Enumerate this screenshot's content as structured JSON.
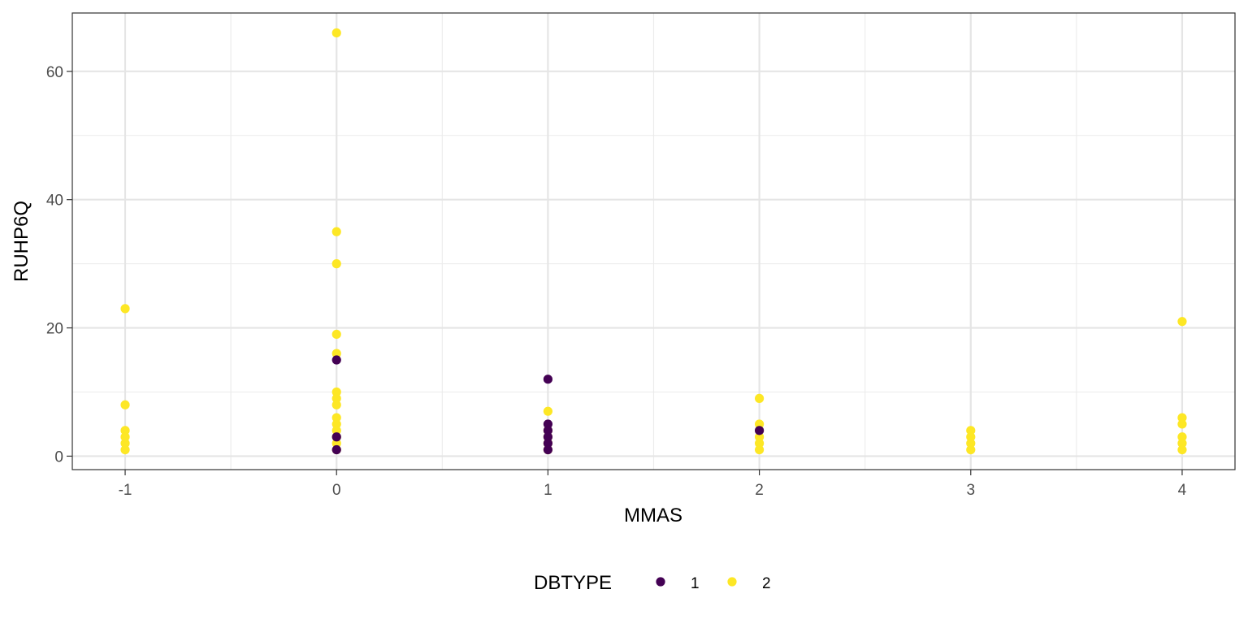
{
  "chart_data": {
    "type": "scatter",
    "title": "",
    "xlabel": "MMAS",
    "ylabel": "RUHP6Q",
    "xlim": [
      -1.25,
      4.25
    ],
    "ylim": [
      -2.1,
      69.1
    ],
    "x_ticks": [
      -1,
      0,
      1,
      2,
      3,
      4
    ],
    "x_tick_labels": [
      "-1",
      "0",
      "1",
      "2",
      "3",
      "4"
    ],
    "y_ticks": [
      0,
      20,
      40,
      60
    ],
    "y_tick_labels": [
      "0",
      "20",
      "40",
      "60"
    ],
    "grid": true,
    "legend": {
      "title": "DBTYPE",
      "position": "bottom",
      "entries": [
        {
          "label": "1",
          "color": "#440154"
        },
        {
          "label": "2",
          "color": "#FDE725"
        }
      ]
    },
    "series": [
      {
        "name": "2",
        "color": "#FDE725",
        "points": [
          [
            -1,
            23
          ],
          [
            -1,
            8
          ],
          [
            -1,
            4
          ],
          [
            -1,
            3
          ],
          [
            -1,
            2
          ],
          [
            -1,
            1
          ],
          [
            0,
            66
          ],
          [
            0,
            35
          ],
          [
            0,
            30
          ],
          [
            0,
            19
          ],
          [
            0,
            16
          ],
          [
            0,
            10
          ],
          [
            0,
            9
          ],
          [
            0,
            8
          ],
          [
            0,
            6
          ],
          [
            0,
            5
          ],
          [
            0,
            4
          ],
          [
            0,
            3
          ],
          [
            0,
            2
          ],
          [
            0,
            1
          ],
          [
            1,
            7
          ],
          [
            1,
            4
          ],
          [
            1,
            3
          ],
          [
            1,
            2
          ],
          [
            1,
            1
          ],
          [
            2,
            9
          ],
          [
            2,
            5
          ],
          [
            2,
            4
          ],
          [
            2,
            3
          ],
          [
            2,
            2
          ],
          [
            2,
            1
          ],
          [
            3,
            4
          ],
          [
            3,
            3
          ],
          [
            3,
            2
          ],
          [
            3,
            1
          ],
          [
            4,
            21
          ],
          [
            4,
            6
          ],
          [
            4,
            5
          ],
          [
            4,
            3
          ],
          [
            4,
            2
          ],
          [
            4,
            1
          ]
        ]
      },
      {
        "name": "1",
        "color": "#440154",
        "points": [
          [
            0,
            15
          ],
          [
            0,
            3
          ],
          [
            0,
            1
          ],
          [
            1,
            12
          ],
          [
            1,
            5
          ],
          [
            1,
            4
          ],
          [
            1,
            3
          ],
          [
            1,
            2
          ],
          [
            1,
            1
          ],
          [
            2,
            4
          ]
        ]
      }
    ]
  }
}
